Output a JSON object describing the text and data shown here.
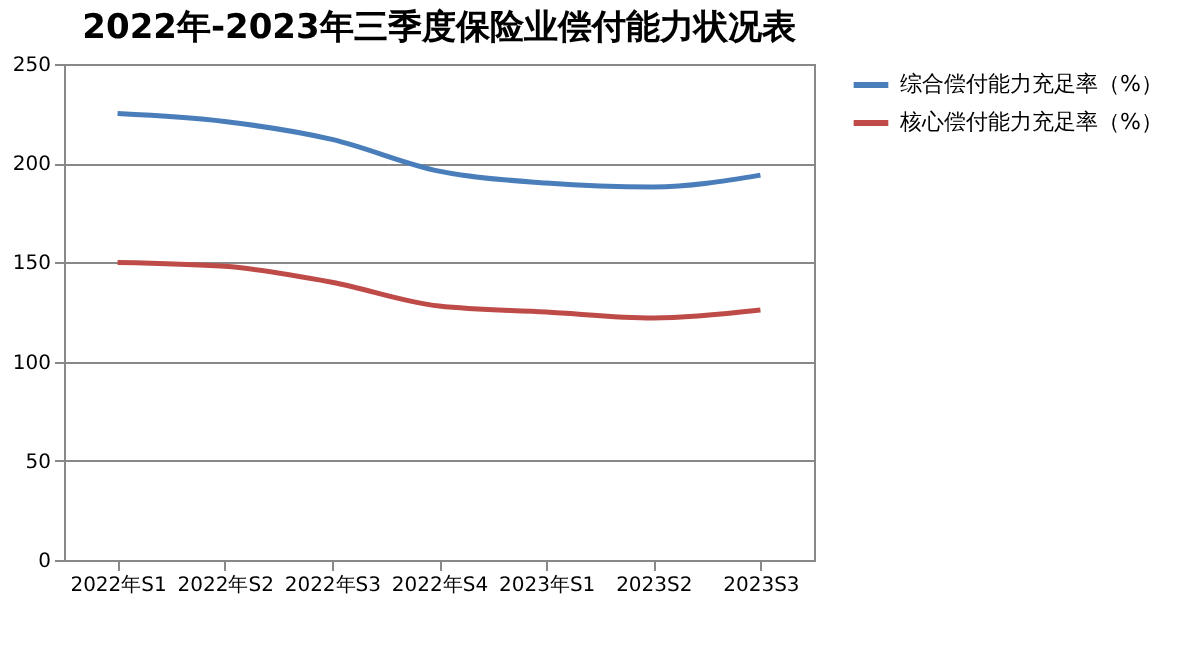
{
  "chart_data": {
    "type": "line",
    "title": "2022年-2023年三季度保险业偿付能力状况表",
    "categories": [
      "2022年S1",
      "2022年S2",
      "2022年S3",
      "2022年S4",
      "2023年S1",
      "2023S2",
      "2023S3"
    ],
    "series": [
      {
        "name": "综合偿付能力充足率（%）",
        "color": "#4a7ebb",
        "values": [
          225,
          221,
          212,
          196,
          190,
          188,
          194
        ]
      },
      {
        "name": "核心偿付能力充足率（%）",
        "color": "#be4b48",
        "values": [
          150,
          148,
          140,
          128,
          125,
          122,
          126
        ]
      }
    ],
    "ylim": [
      0,
      250
    ],
    "yticks": [
      0,
      50,
      100,
      150,
      200,
      250
    ],
    "grid": "y",
    "legend": "right",
    "marker": "none",
    "line_style": "solid"
  }
}
